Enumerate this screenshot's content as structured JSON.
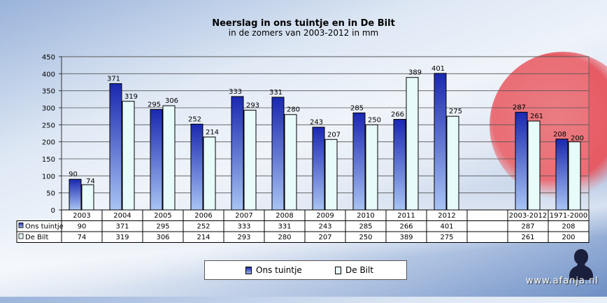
{
  "chart_data": {
    "type": "bar",
    "title": "Neerslag in ons tuintje en in De Bilt",
    "subtitle": "in de zomers van 2003-2012 in mm",
    "categories": [
      "2003",
      "2004",
      "2005",
      "2006",
      "2007",
      "2008",
      "2009",
      "2010",
      "2011",
      "2012",
      "",
      "2003-2012",
      "1971-2000"
    ],
    "series": [
      {
        "name": "Ons tuintje",
        "values": [
          90,
          371,
          295,
          252,
          333,
          331,
          243,
          285,
          266,
          401,
          null,
          287,
          208
        ],
        "color": "#1a28b0"
      },
      {
        "name": "De Bilt",
        "values": [
          74,
          319,
          306,
          214,
          293,
          280,
          207,
          250,
          389,
          275,
          null,
          261,
          200
        ],
        "color": "#e8fbfb"
      }
    ],
    "ylim": [
      0,
      450
    ],
    "yticks": [
      0,
      50,
      100,
      150,
      200,
      250,
      300,
      350,
      400,
      450
    ],
    "grid": true,
    "legend_position": "bottom",
    "data_table": true
  },
  "watermark": "www.afanja.nl"
}
